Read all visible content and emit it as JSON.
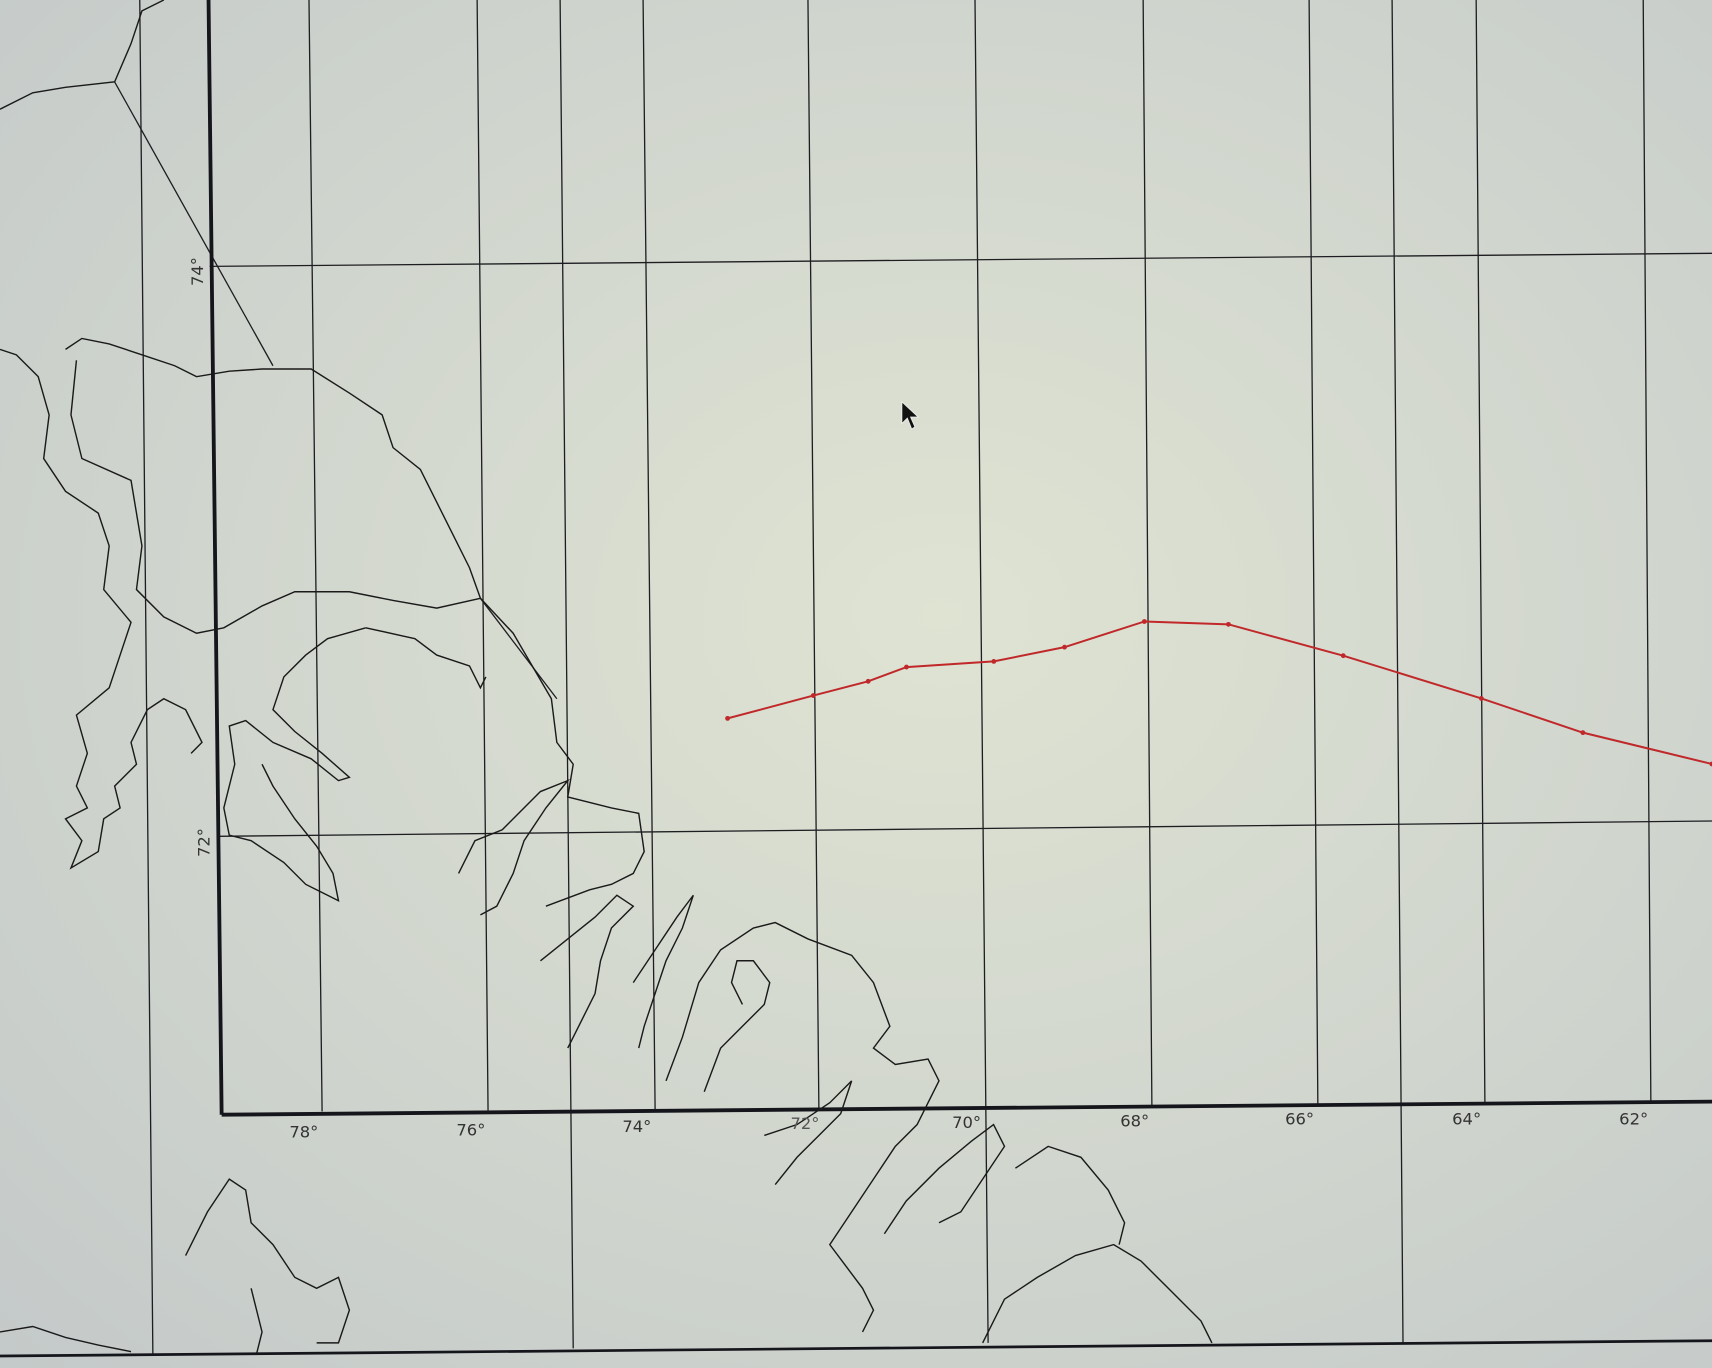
{
  "map": {
    "lon_labels": [
      "78°",
      "76°",
      "74°",
      "72°",
      "70°",
      "68°",
      "66°",
      "64°",
      "62°"
    ],
    "lat_labels": [
      "74°",
      "72°"
    ],
    "track_color": "#c0282a",
    "track": [
      {
        "lon": 73.1,
        "lat": 72.41
      },
      {
        "lon": 72.07,
        "lat": 72.49
      },
      {
        "lon": 71.41,
        "lat": 72.54
      },
      {
        "lon": 70.95,
        "lat": 72.59
      },
      {
        "lon": 69.9,
        "lat": 72.61
      },
      {
        "lon": 69.05,
        "lat": 72.66
      },
      {
        "lon": 68.09,
        "lat": 72.75
      },
      {
        "lon": 67.08,
        "lat": 72.74
      },
      {
        "lon": 65.7,
        "lat": 72.63
      },
      {
        "lon": 64.04,
        "lat": 72.48
      },
      {
        "lon": 62.82,
        "lat": 72.36
      },
      {
        "lon": 61.27,
        "lat": 72.25
      }
    ],
    "cursor_icon": "arrow-pointer"
  }
}
